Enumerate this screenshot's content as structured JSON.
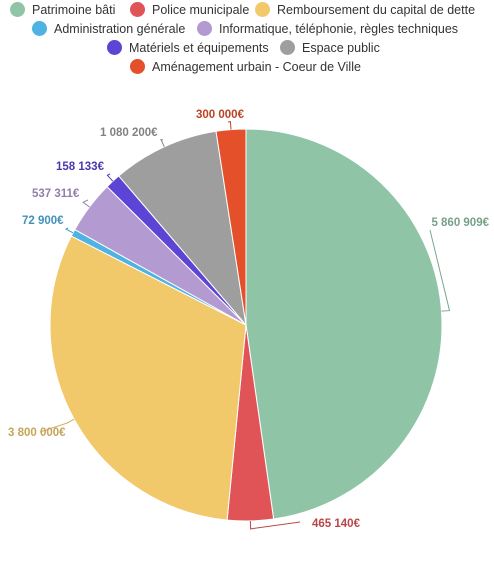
{
  "chart_data": {
    "type": "pie",
    "title": "",
    "slices": [
      {
        "name": "Patrimoine bâti",
        "value": 5860909,
        "label": "5 860 909€",
        "color": "#8fc4a7"
      },
      {
        "name": "Police municipale",
        "value": 465140,
        "label": "465 140€",
        "color": "#e05457"
      },
      {
        "name": "Remboursement du capital de dette",
        "value": 3800000,
        "label": "3 800 000€",
        "color": "#f1c96b"
      },
      {
        "name": "Administration générale",
        "value": 72900,
        "label": "72 900€",
        "color": "#4fb2e3"
      },
      {
        "name": "Informatique, téléphonie, règles techniques",
        "value": 537311,
        "label": "537 311€",
        "color": "#b39ad0"
      },
      {
        "name": "Matériels et équipements",
        "value": 158133,
        "label": "158 133€",
        "color": "#5c44d4"
      },
      {
        "name": "Espace public",
        "value": 1080200,
        "label": "1 080 200€",
        "color": "#9e9e9e"
      },
      {
        "name": "Aménagement urbain - Coeur de Ville",
        "value": 300000,
        "label": "300 000€",
        "color": "#e4502a"
      }
    ],
    "legend_position": "top"
  }
}
